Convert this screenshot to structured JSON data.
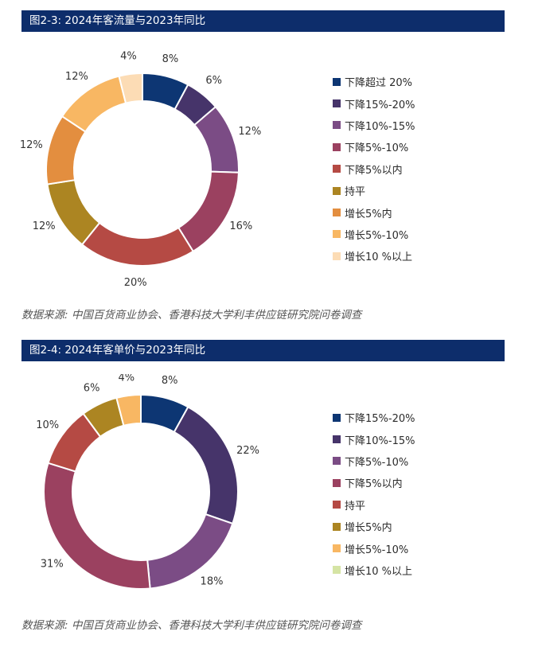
{
  "chart_data": [
    {
      "type": "donut",
      "title": "图2-3: 2024年客流量与2023年同比",
      "source": "数据来源: 中国百货商业协会、香港科技大学利丰供应链研究院问卷调查",
      "categories": [
        "下降超过 20%",
        "下降15%-20%",
        "下降10%-15%",
        "下降5%-10%",
        "下降5%以内",
        "持平",
        "增长5%内",
        "增长5%-10%",
        "增长10 %以上"
      ],
      "values": [
        8,
        6,
        12,
        16,
        20,
        12,
        12,
        12,
        4
      ],
      "labels": [
        "8%",
        "6%",
        "12%",
        "16%",
        "20%",
        "12%",
        "12%",
        "12%",
        "4%"
      ],
      "colors": [
        "#0d3673",
        "#46346a",
        "#7b4c85",
        "#9b4160",
        "#b54a44",
        "#ac8522",
        "#e38e3f",
        "#f8b763",
        "#fcdcb5"
      ],
      "legend_position": "right"
    },
    {
      "type": "donut",
      "title": "图2-4: 2024年客单价与2023年同比",
      "source": "数据来源: 中国百货商业协会、香港科技大学利丰供应链研究院问卷调查",
      "categories": [
        "下降15%-20%",
        "下降10%-15%",
        "下降5%-10%",
        "下降5%以内",
        "持平",
        "增长5%内",
        "增长5%-10%",
        "增长10 %以上"
      ],
      "values": [
        8,
        22,
        18,
        31,
        10,
        6,
        4,
        0
      ],
      "labels": [
        "8%",
        "22%",
        "18%",
        "31%",
        "10%",
        "6%",
        "4%",
        ""
      ],
      "colors": [
        "#0d3673",
        "#46346a",
        "#7b4c85",
        "#9b4160",
        "#b54a44",
        "#ac8522",
        "#f8b763",
        "#d5e4a4"
      ],
      "legend_position": "right"
    }
  ]
}
